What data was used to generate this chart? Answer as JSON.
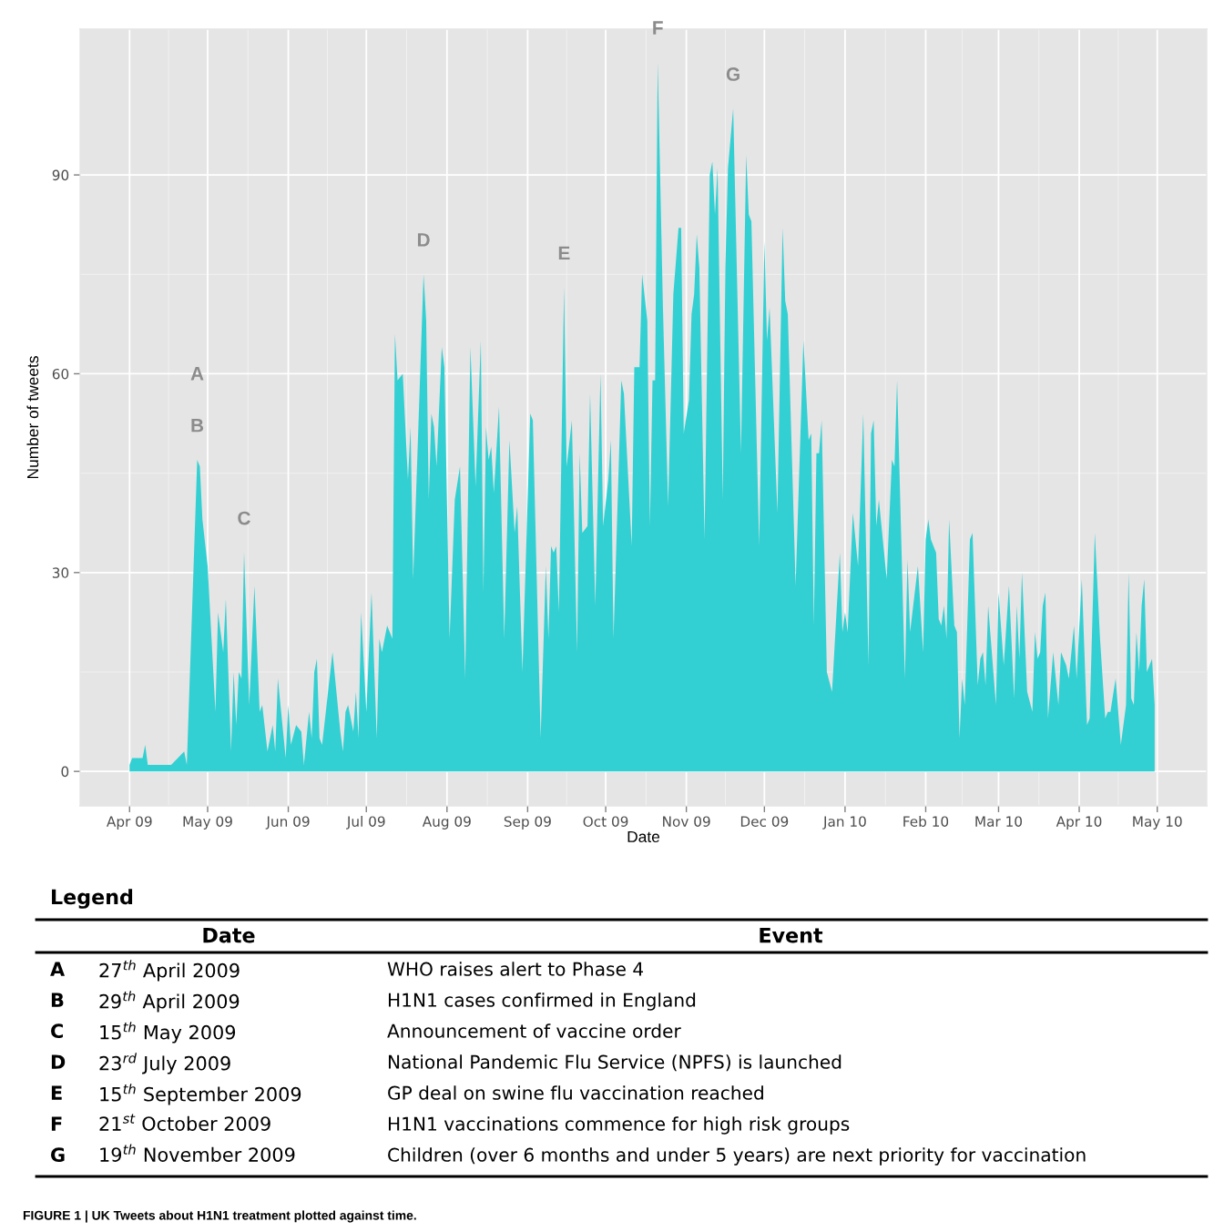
{
  "chart_data": {
    "type": "area",
    "xlabel": "Date",
    "ylabel": "Number of tweets",
    "x": [
      "2009-04-01",
      "2009-04-02",
      "2009-04-06",
      "2009-04-07",
      "2009-04-08",
      "2009-04-17",
      "2009-04-22",
      "2009-04-23",
      "2009-04-27",
      "2009-04-28",
      "2009-04-29",
      "2009-05-01",
      "2009-05-04",
      "2009-05-05",
      "2009-05-07",
      "2009-05-08",
      "2009-05-10",
      "2009-05-11",
      "2009-05-12",
      "2009-05-13",
      "2009-05-14",
      "2009-05-15",
      "2009-05-17",
      "2009-05-19",
      "2009-05-21",
      "2009-05-22",
      "2009-05-24",
      "2009-05-26",
      "2009-05-27",
      "2009-05-28",
      "2009-05-31",
      "2009-06-01",
      "2009-06-02",
      "2009-06-04",
      "2009-06-06",
      "2009-06-07",
      "2009-06-09",
      "2009-06-10",
      "2009-06-11",
      "2009-06-12",
      "2009-06-13",
      "2009-06-14",
      "2009-06-18",
      "2009-06-21",
      "2009-06-22",
      "2009-06-23",
      "2009-06-24",
      "2009-06-26",
      "2009-06-27",
      "2009-06-28",
      "2009-06-29",
      "2009-07-01",
      "2009-07-03",
      "2009-07-05",
      "2009-07-06",
      "2009-07-07",
      "2009-07-09",
      "2009-07-10",
      "2009-07-11",
      "2009-07-12",
      "2009-07-13",
      "2009-07-15",
      "2009-07-17",
      "2009-07-18",
      "2009-07-19",
      "2009-07-23",
      "2009-07-24",
      "2009-07-25",
      "2009-07-26",
      "2009-07-27",
      "2009-07-28",
      "2009-07-30",
      "2009-07-31",
      "2009-08-02",
      "2009-08-04",
      "2009-08-06",
      "2009-08-08",
      "2009-08-10",
      "2009-08-12",
      "2009-08-14",
      "2009-08-15",
      "2009-08-16",
      "2009-08-17",
      "2009-08-18",
      "2009-08-19",
      "2009-08-21",
      "2009-08-23",
      "2009-08-25",
      "2009-08-27",
      "2009-08-28",
      "2009-08-30",
      "2009-09-02",
      "2009-09-03",
      "2009-09-06",
      "2009-09-08",
      "2009-09-09",
      "2009-09-10",
      "2009-09-11",
      "2009-09-12",
      "2009-09-13",
      "2009-09-15",
      "2009-09-16",
      "2009-09-18",
      "2009-09-20",
      "2009-09-21",
      "2009-09-22",
      "2009-09-24",
      "2009-09-25",
      "2009-09-27",
      "2009-09-29",
      "2009-09-30",
      "2009-10-02",
      "2009-10-03",
      "2009-10-04",
      "2009-10-07",
      "2009-10-08",
      "2009-10-11",
      "2009-10-12",
      "2009-10-14",
      "2009-10-15",
      "2009-10-17",
      "2009-10-18",
      "2009-10-19",
      "2009-10-20",
      "2009-10-21",
      "2009-10-23",
      "2009-10-25",
      "2009-10-27",
      "2009-10-29",
      "2009-10-30",
      "2009-10-31",
      "2009-11-02",
      "2009-11-03",
      "2009-11-04",
      "2009-11-05",
      "2009-11-06",
      "2009-11-08",
      "2009-11-10",
      "2009-11-11",
      "2009-11-12",
      "2009-11-13",
      "2009-11-15",
      "2009-11-16",
      "2009-11-17",
      "2009-11-19",
      "2009-11-22",
      "2009-11-24",
      "2009-11-25",
      "2009-11-26",
      "2009-11-29",
      "2009-12-01",
      "2009-12-02",
      "2009-12-03",
      "2009-12-06",
      "2009-12-08",
      "2009-12-09",
      "2009-12-10",
      "2009-12-13",
      "2009-12-16",
      "2009-12-18",
      "2009-12-19",
      "2009-12-20",
      "2009-12-21",
      "2009-12-22",
      "2009-12-23",
      "2009-12-25",
      "2009-12-27",
      "2009-12-30",
      "2009-12-31",
      "2010-01-01",
      "2010-01-02",
      "2010-01-04",
      "2010-01-06",
      "2010-01-08",
      "2010-01-10",
      "2010-01-11",
      "2010-01-12",
      "2010-01-13",
      "2010-01-14",
      "2010-01-17",
      "2010-01-19",
      "2010-01-20",
      "2010-01-21",
      "2010-01-24",
      "2010-01-25",
      "2010-01-26",
      "2010-01-29",
      "2010-01-31",
      "2010-02-01",
      "2010-02-02",
      "2010-02-03",
      "2010-02-05",
      "2010-02-06",
      "2010-02-07",
      "2010-02-08",
      "2010-02-09",
      "2010-02-10",
      "2010-02-12",
      "2010-02-13",
      "2010-02-14",
      "2010-02-15",
      "2010-02-16",
      "2010-02-18",
      "2010-02-19",
      "2010-02-21",
      "2010-02-22",
      "2010-02-23",
      "2010-02-24",
      "2010-02-25",
      "2010-02-28",
      "2010-03-01",
      "2010-03-03",
      "2010-03-05",
      "2010-03-07",
      "2010-03-08",
      "2010-03-09",
      "2010-03-10",
      "2010-03-12",
      "2010-03-14",
      "2010-03-15",
      "2010-03-16",
      "2010-03-17",
      "2010-03-18",
      "2010-03-19",
      "2010-03-20",
      "2010-03-22",
      "2010-03-24",
      "2010-03-25",
      "2010-03-27",
      "2010-03-28",
      "2010-03-30",
      "2010-03-31",
      "2010-04-02",
      "2010-04-04",
      "2010-04-05",
      "2010-04-07",
      "2010-04-09",
      "2010-04-11",
      "2010-04-12",
      "2010-04-13",
      "2010-04-15",
      "2010-04-17",
      "2010-04-19",
      "2010-04-20",
      "2010-04-21",
      "2010-04-22",
      "2010-04-23",
      "2010-04-24",
      "2010-04-25",
      "2010-04-26",
      "2010-04-27",
      "2010-04-29",
      "2010-04-30"
    ],
    "series": [
      {
        "color": "#2ecfd1",
        "values": [
          1,
          2,
          2,
          4,
          1,
          1,
          3,
          1,
          47,
          46,
          38,
          31,
          9,
          24,
          18,
          26,
          3,
          15,
          7,
          15,
          14,
          33,
          10,
          28,
          9,
          10,
          3,
          7,
          3,
          14,
          2,
          10,
          4,
          7,
          6,
          1,
          9,
          5,
          15,
          17,
          5,
          4,
          18,
          6,
          3,
          9,
          10,
          6,
          12,
          5,
          24,
          9,
          27,
          5,
          20,
          18,
          22,
          21,
          20,
          66,
          59,
          60,
          44,
          52,
          29,
          75,
          68,
          41,
          54,
          52,
          46,
          64,
          61,
          20,
          41,
          46,
          14,
          64,
          43,
          65,
          27,
          52,
          47,
          49,
          42,
          55,
          20,
          50,
          36,
          40,
          15,
          54,
          53,
          5,
          31,
          20,
          34,
          33,
          34,
          24,
          73,
          46,
          53,
          18,
          48,
          36,
          37,
          57,
          25,
          60,
          37,
          44,
          50,
          20,
          59,
          57,
          34,
          61,
          61,
          75,
          68,
          37,
          59,
          59,
          107,
          70,
          40,
          72,
          82,
          82,
          51,
          56,
          69,
          72,
          81,
          76,
          35,
          90,
          92,
          84,
          91,
          41,
          76,
          91,
          100,
          48,
          93,
          84,
          83,
          34,
          80,
          65,
          70,
          39,
          82,
          71,
          69,
          28,
          65,
          50,
          51,
          22,
          48,
          48,
          53,
          15,
          12,
          33,
          21,
          24,
          21,
          39,
          31,
          54,
          16,
          51,
          53,
          37,
          41,
          29,
          47,
          46,
          59,
          14,
          32,
          21,
          31,
          18,
          35,
          38,
          35,
          33,
          23,
          22,
          25,
          20,
          38,
          22,
          21,
          5,
          14,
          10,
          35,
          36,
          13,
          17,
          18,
          13,
          25,
          10,
          27,
          16,
          28,
          11,
          25,
          17,
          30,
          12,
          9,
          21,
          17,
          18,
          25,
          27,
          8,
          18,
          10,
          18,
          16,
          14,
          22,
          14,
          29,
          7,
          8,
          36,
          20,
          8,
          9,
          9,
          14,
          4,
          10,
          30,
          11,
          10,
          21,
          15,
          25,
          29,
          15,
          17,
          10
        ]
      }
    ],
    "xlim": [
      "2009-03-13",
      "2010-05-20"
    ],
    "ylim": [
      -5.2,
      112
    ],
    "xticks": [
      {
        "value": "2009-04-01",
        "label": "Apr 09"
      },
      {
        "value": "2009-05-01",
        "label": "May 09"
      },
      {
        "value": "2009-06-01",
        "label": "Jun 09"
      },
      {
        "value": "2009-07-01",
        "label": "Jul 09"
      },
      {
        "value": "2009-08-01",
        "label": "Aug 09"
      },
      {
        "value": "2009-09-01",
        "label": "Sep 09"
      },
      {
        "value": "2009-10-01",
        "label": "Oct 09"
      },
      {
        "value": "2009-11-01",
        "label": "Nov 09"
      },
      {
        "value": "2009-12-01",
        "label": "Dec 09"
      },
      {
        "value": "2010-01-01",
        "label": "Jan 10"
      },
      {
        "value": "2010-02-01",
        "label": "Feb 10"
      },
      {
        "value": "2010-03-01",
        "label": "Mar 10"
      },
      {
        "value": "2010-04-01",
        "label": "Apr 10"
      },
      {
        "value": "2010-05-01",
        "label": "May 10"
      }
    ],
    "yticks": [
      0,
      30,
      60,
      90
    ],
    "grid": true,
    "annotations": [
      "A",
      {
        "text": "B",
        "x": "2009-04-27",
        "y": 47
      },
      {
        "text": "C",
        "x": "2009-05-15",
        "y": 33
      },
      {
        "text": "D",
        "x": "2009-07-23",
        "y": 75
      },
      {
        "text": "E",
        "x": "2009-09-15",
        "y": 73
      },
      {
        "text": "F",
        "x": "2009-10-21",
        "y": 107
      },
      {
        "text": "G",
        "x": "2009-11-19",
        "y": 100
      },
      "Legend",
      "Date",
      "Event",
      "A",
      "27$^{th}$ April 2009",
      "WHO raises alert to Phase 4",
      "B",
      "29$^{th}$ April 2009",
      "H1N1 cases confirmed in England",
      "C",
      "15$^{th}$ May 2009",
      "Announcement of vaccine order",
      "D",
      "23$^{rd}$ July 2009",
      "National Pandemic Flu Service (NPFS) is launched",
      "E",
      "15$^{th}$ September 2009",
      "GP deal on swine flu vaccination reached",
      "F",
      "21$^{st}$ October 2009",
      "H1N1 vaccinations commence for high risk groups",
      "G",
      "19$^{th}$ November 2009",
      "Children (over 6 months and under 5 years) are next priority for vaccination",
      "FIGURE 1 | UK Tweets about H1N1 treatment plotted against time."
    ]
  }
}
